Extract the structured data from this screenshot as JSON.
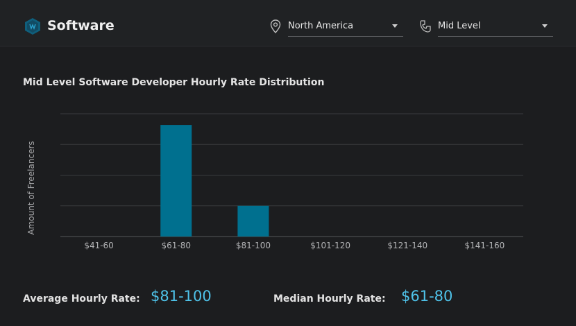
{
  "header": {
    "title": "Software",
    "location": {
      "value": "North America",
      "icon": "location-pin-icon"
    },
    "level": {
      "value": "Mid Level",
      "icon": "user-level-icon"
    }
  },
  "colors": {
    "accent": "#4fc3ea",
    "bar": "#00708f",
    "background": "#1c1d1f"
  },
  "chart_data": {
    "type": "bar",
    "title": "Mid Level Software Developer Hourly Rate Distribution",
    "xlabel": "",
    "ylabel": "Amount of Freelancers",
    "categories": [
      "$41-60",
      "$61-80",
      "$81-100",
      "$101-120",
      "$121-140",
      "$141-160"
    ],
    "values": [
      0,
      8,
      2.2,
      0,
      0,
      0
    ],
    "ylim": [
      0,
      8.8
    ],
    "grid": true,
    "y_tick_labels_shown": false
  },
  "stats": {
    "average_label": "Average Hourly Rate:",
    "average_value": "$81-100",
    "median_label": "Median Hourly Rate:",
    "median_value": "$61-80"
  }
}
